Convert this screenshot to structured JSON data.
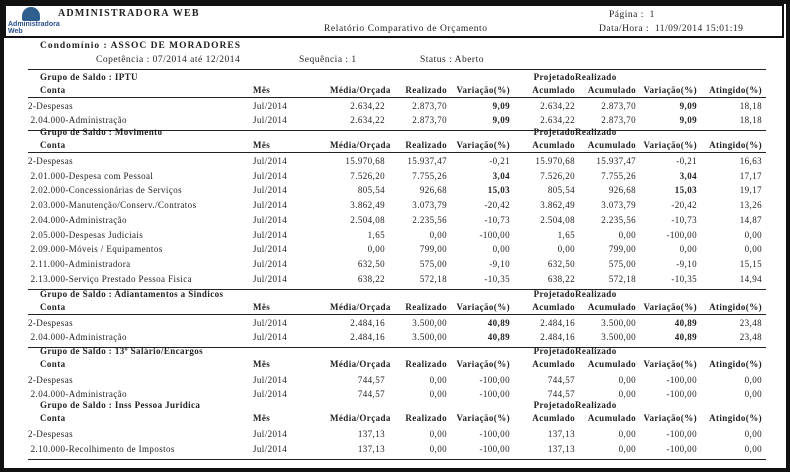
{
  "header": {
    "app_title": "ADMINISTRADORA WEB",
    "logo_text": "Administradora Web",
    "report_title": "Relatório Comparativo de Orçamento",
    "page_label": "Página :",
    "page_value": "1",
    "datetime_label": "Data/Hora :",
    "datetime_value": "11/09/2014 15:01:19"
  },
  "filters": {
    "condominio_label": "Condomínio :",
    "condominio_value": "ASSOC DE MORADORES",
    "competencia": "Copetência : 07/2014 até 12/2014",
    "sequencia": "Sequência : 1",
    "status": "Status : Aberto"
  },
  "columns": {
    "conta": "Conta",
    "mes": "Mês",
    "media": "Média/Orçada",
    "realizado": "Realizado",
    "variacao": "Variação(%)",
    "projetado_1": "Projetado",
    "projetado_2": "Acumlado",
    "realizado_ac_1": "Realizado",
    "realizado_ac_2": "Acumulado",
    "variacao2": "Variação(%)",
    "atingido": "Atingido(%)"
  },
  "groups": [
    {
      "title": "Grupo de Saldo : IPTU",
      "rows": [
        [
          "2-Despesas",
          "Jul/2014",
          "2.634,22",
          "2.873,70",
          "9,09",
          "2.634,22",
          "2.873,70",
          "9,09",
          "18,18"
        ],
        [
          " 2.04.000-Administração",
          "Jul/2014",
          "2.634,22",
          "2.873,70",
          "9,09",
          "2.634,22",
          "2.873,70",
          "9,09",
          "18,18"
        ]
      ]
    },
    {
      "title": "Grupo de Saldo : Movimento",
      "rows": [
        [
          "2-Despesas",
          "Jul/2014",
          "15.970,68",
          "15.937,47",
          "-0,21",
          "15.970,68",
          "15.937,47",
          "-0,21",
          "16,63"
        ],
        [
          " 2.01.000-Despesa com Pessoal",
          "Jul/2014",
          "7.526,20",
          "7.755,26",
          "3,04",
          "7.526,20",
          "7.755,26",
          "3,04",
          "17,17"
        ],
        [
          " 2.02.000-Concessionárias de Serviços",
          "Jul/2014",
          "805,54",
          "926,68",
          "15,03",
          "805,54",
          "926,68",
          "15,03",
          "19,17"
        ],
        [
          " 2.03.000-Manutenção/Conserv./Contratos",
          "Jul/2014",
          "3.862,49",
          "3.073,79",
          "-20,42",
          "3.862,49",
          "3.073,79",
          "-20,42",
          "13,26"
        ],
        [
          " 2.04.000-Administração",
          "Jul/2014",
          "2.504,08",
          "2.235,56",
          "-10,73",
          "2.504,08",
          "2.235,56",
          "-10,73",
          "14,87"
        ],
        [
          " 2.05.000-Despesas Judiciais",
          "Jul/2014",
          "1,65",
          "0,00",
          "-100,00",
          "1,65",
          "0,00",
          "-100,00",
          "0,00"
        ],
        [
          " 2.09.000-Móveis / Equipamentos",
          "Jul/2014",
          "0,00",
          "799,00",
          "0,00",
          "0,00",
          "799,00",
          "0,00",
          "0,00"
        ],
        [
          " 2.11.000-Administradora",
          "Jul/2014",
          "632,50",
          "575,00",
          "-9,10",
          "632,50",
          "575,00",
          "-9,10",
          "15,15"
        ],
        [
          " 2.13.000-Serviço Prestado Pessoa Fisica",
          "Jul/2014",
          "638,22",
          "572,18",
          "-10,35",
          "638,22",
          "572,18",
          "-10,35",
          "14,94"
        ]
      ]
    },
    {
      "title": "Grupo de Saldo : Adiantamentos a Sindicos",
      "rows": [
        [
          "2-Despesas",
          "Jul/2014",
          "2.484,16",
          "3.500,00",
          "40,89",
          "2.484,16",
          "3.500,00",
          "40,89",
          "23,48"
        ],
        [
          " 2.04.000-Administração",
          "Jul/2014",
          "2.484,16",
          "3.500,00",
          "40,89",
          "2.484,16",
          "3.500,00",
          "40,89",
          "23,48"
        ]
      ]
    },
    {
      "title": "Grupo de Saldo : 13º Salário/Encargos",
      "rows": [
        [
          "2-Despesas",
          "Jul/2014",
          "744,57",
          "0,00",
          "-100,00",
          "744,57",
          "0,00",
          "-100,00",
          "0,00"
        ],
        [
          " 2.04.000-Administração",
          "Jul/2014",
          "744,57",
          "0,00",
          "-100,00",
          "744,57",
          "0,00",
          "-100,00",
          "0,00"
        ]
      ]
    },
    {
      "title": "Grupo de Saldo : Inss Pessoa Juridica",
      "rows": [
        [
          "2-Despesas",
          "Jul/2014",
          "137,13",
          "0,00",
          "-100,00",
          "137,13",
          "0,00",
          "-100,00",
          "0,00"
        ],
        [
          " 2.10.000-Recolhimento de Impostos",
          "Jul/2014",
          "137,13",
          "0,00",
          "-100,00",
          "137,13",
          "0,00",
          "-100,00",
          "0,00"
        ]
      ]
    }
  ]
}
